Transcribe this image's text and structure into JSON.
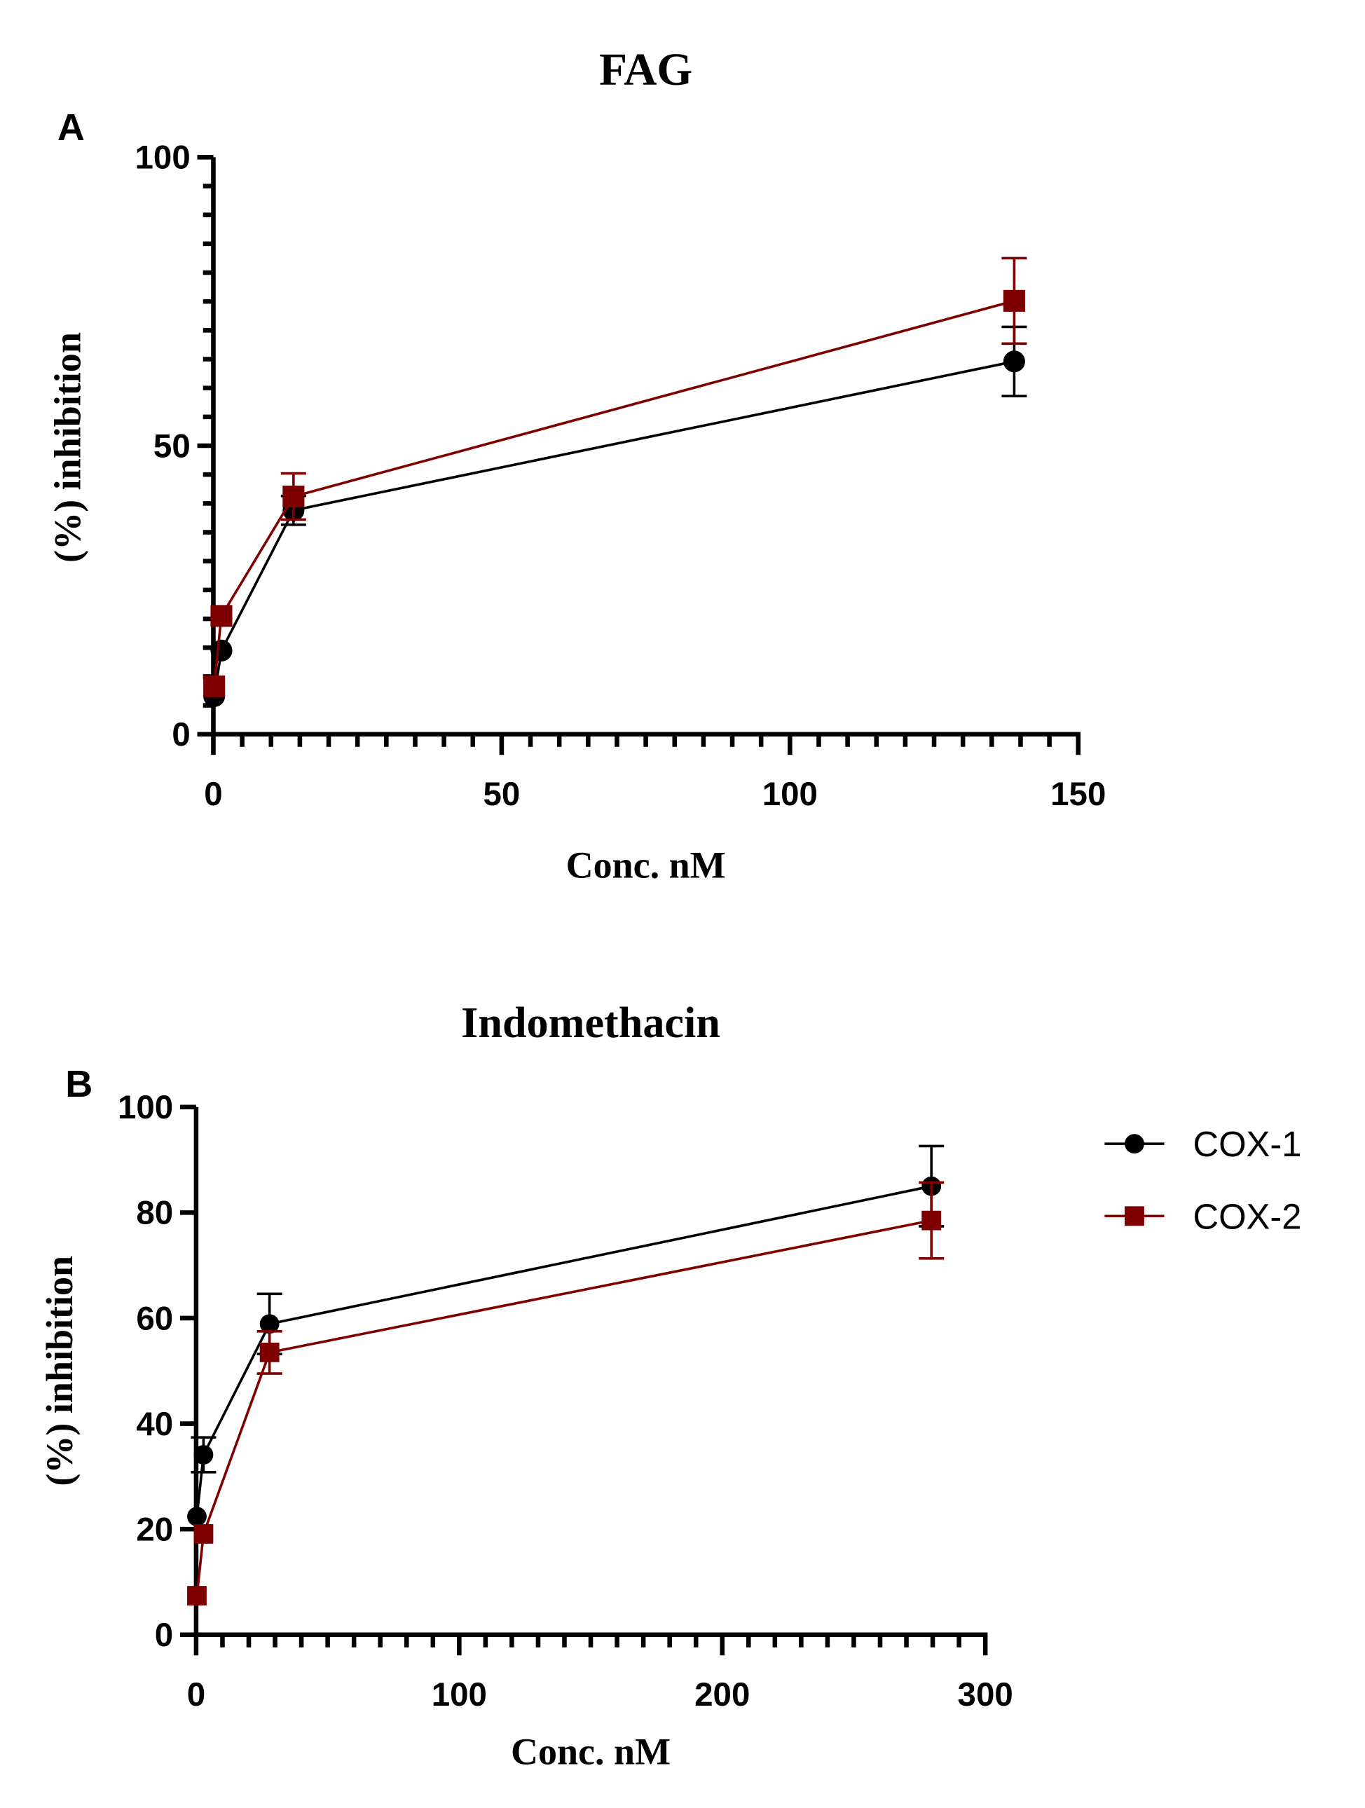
{
  "chart_data": [
    {
      "type": "line",
      "panel": "A",
      "title": "FAG",
      "xlabel": "Conc. nM",
      "ylabel": "(%) inhibition",
      "xlim": [
        0,
        150
      ],
      "ylim": [
        0,
        100
      ],
      "xticks": [
        0,
        50,
        100,
        150
      ],
      "yticks": [
        0,
        50,
        100
      ],
      "x_minor_step": 5,
      "y_minor_step": 5,
      "series": [
        {
          "name": "COX-1",
          "color": "#000000",
          "marker": "circle",
          "x": [
            0.14,
            1.4,
            13.9,
            138.9
          ],
          "y": [
            6.6,
            14.5,
            38.8,
            64.6
          ],
          "err": [
            0,
            0,
            2.5,
            6.0
          ]
        },
        {
          "name": "COX-2",
          "color": "#7f0000",
          "marker": "square",
          "x": [
            0.14,
            1.4,
            13.9,
            138.9
          ],
          "y": [
            8.3,
            20.5,
            41.2,
            75.1
          ],
          "err": [
            0,
            0,
            4.0,
            7.4
          ]
        }
      ]
    },
    {
      "type": "line",
      "panel": "B",
      "title": "Indomethacin",
      "xlabel": "Conc. nM",
      "ylabel": "(%) inhibition",
      "xlim": [
        0,
        300
      ],
      "ylim": [
        0,
        100
      ],
      "xticks": [
        0,
        100,
        200,
        300
      ],
      "yticks": [
        0,
        20,
        40,
        60,
        80,
        100
      ],
      "x_minor_step": 10,
      "y_minor_step": 20,
      "legend": "right",
      "series": [
        {
          "name": "COX-1",
          "color": "#000000",
          "marker": "circle",
          "x": [
            0.28,
            2.8,
            27.9,
            279.5
          ],
          "y": [
            22.4,
            34.1,
            58.9,
            85.0
          ],
          "err": [
            0,
            3.3,
            5.7,
            7.6
          ]
        },
        {
          "name": "COX-2",
          "color": "#7f0000",
          "marker": "square",
          "x": [
            0.28,
            2.8,
            27.9,
            279.5
          ],
          "y": [
            7.4,
            19.1,
            53.5,
            78.5
          ],
          "err": [
            0,
            0,
            4.0,
            7.2
          ]
        }
      ]
    }
  ]
}
